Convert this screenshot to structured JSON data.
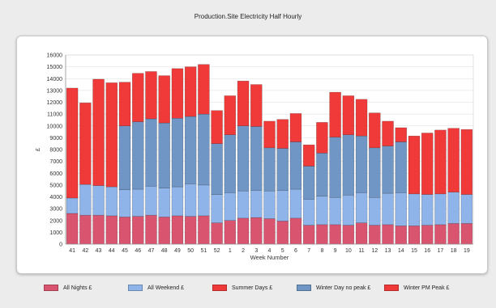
{
  "title": "Production.Site Electricity Half Hourly",
  "chart_data": {
    "type": "bar",
    "stacked": true,
    "xlabel": "Week Number",
    "ylabel": "£",
    "ylim": [
      0,
      16000
    ],
    "yticks": [
      0,
      1000,
      2000,
      3000,
      4000,
      5000,
      6000,
      7000,
      8000,
      9000,
      10000,
      11000,
      12000,
      13000,
      14000,
      15000,
      16000
    ],
    "grid": true,
    "legend_position": "bottom",
    "categories": [
      "41",
      "42",
      "43",
      "44",
      "45",
      "46",
      "47",
      "48",
      "49",
      "50",
      "51",
      "52",
      "1",
      "2",
      "3",
      "4",
      "5",
      "6",
      "7",
      "8",
      "9",
      "10",
      "11",
      "12",
      "13",
      "14",
      "15",
      "16",
      "17",
      "18",
      "19"
    ],
    "series": [
      {
        "name": "All Nights £",
        "color": "#d9546f",
        "values": [
          2600,
          2450,
          2450,
          2400,
          2300,
          2350,
          2450,
          2300,
          2400,
          2350,
          2400,
          1800,
          2000,
          2200,
          2250,
          2150,
          1950,
          2200,
          1600,
          1650,
          1650,
          1600,
          1800,
          1600,
          1650,
          1550,
          1550,
          1600,
          1650,
          1750,
          1750
        ]
      },
      {
        "name": "All Weekend £",
        "color": "#8fb4ea",
        "values": [
          1300,
          2600,
          2500,
          2450,
          2300,
          2300,
          2450,
          2450,
          2450,
          2750,
          2600,
          2400,
          2350,
          2300,
          2300,
          2350,
          2600,
          2450,
          2200,
          2400,
          2300,
          2550,
          2550,
          2350,
          2650,
          2800,
          2700,
          2600,
          2600,
          2650,
          2450
        ]
      },
      {
        "name": "Summer Days £",
        "color": "#f03a3a",
        "values": [
          0,
          0,
          0,
          0,
          0,
          0,
          0,
          0,
          0,
          0,
          0,
          0,
          0,
          0,
          0,
          0,
          0,
          0,
          0,
          0,
          0,
          0,
          0,
          0,
          0,
          0,
          0,
          0,
          0,
          0,
          0
        ]
      },
      {
        "name": "Winter Day no peak £",
        "color": "#6f96c4",
        "values": [
          0,
          0,
          0,
          0,
          5400,
          5700,
          5700,
          5500,
          5800,
          5700,
          6000,
          4300,
          4900,
          5500,
          5400,
          3650,
          3550,
          4000,
          2800,
          3650,
          5100,
          5100,
          4800,
          4200,
          4000,
          4300,
          0,
          0,
          0,
          0,
          0
        ]
      },
      {
        "name": "Winter PM Peak £",
        "color": "#f03a3a",
        "values": [
          9300,
          6900,
          9000,
          8800,
          3700,
          4100,
          4000,
          4000,
          4200,
          4200,
          4200,
          2800,
          3300,
          3800,
          3550,
          2250,
          2450,
          2400,
          1800,
          2600,
          3800,
          3300,
          3100,
          2950,
          2100,
          1200,
          4900,
          5200,
          5400,
          5400,
          5500
        ]
      }
    ]
  }
}
